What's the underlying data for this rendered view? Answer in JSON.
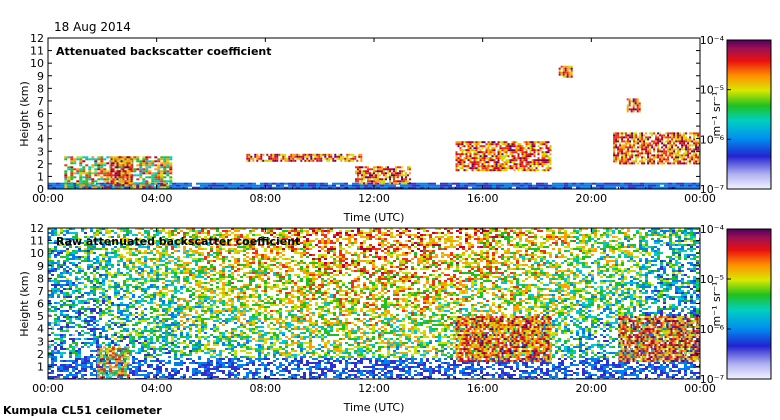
{
  "header": {
    "date": "18 Aug 2014"
  },
  "footer": {
    "site": "Kumpula CL51 ceilometer"
  },
  "chart_data": [
    {
      "type": "heatmap",
      "title": "Attenuated backscatter coefficient",
      "xlabel": "Time (UTC)",
      "ylabel": "Height (km)",
      "x_ticks": [
        "00:00",
        "04:00",
        "08:00",
        "12:00",
        "16:00",
        "20:00",
        "00:00"
      ],
      "x_range_hours": [
        0,
        24
      ],
      "y_ticks": [
        0,
        1,
        2,
        3,
        4,
        5,
        6,
        7,
        8,
        9,
        10,
        11,
        12
      ],
      "ylim": [
        0,
        12
      ],
      "colorbar": {
        "label": "m⁻¹ sr⁻¹",
        "ticks": [
          "10⁻⁴",
          "10⁻⁵",
          "10⁻⁶",
          "10⁻⁷"
        ],
        "range": [
          1e-07,
          0.0001
        ],
        "scale": "log"
      },
      "features": [
        {
          "kind": "surface-layer",
          "start_h": 0,
          "end_h": 24,
          "top_km": 0.5
        },
        {
          "kind": "boundary-layer",
          "start_h": 0.6,
          "end_h": 4.5,
          "top_km": 2.6
        },
        {
          "kind": "cloud",
          "start_h": 2.3,
          "end_h": 3.1,
          "base_km": 0.3,
          "top_km": 2.6
        },
        {
          "kind": "cloud",
          "start_h": 7.3,
          "end_h": 11.5,
          "base_km": 2.2,
          "top_km": 2.8
        },
        {
          "kind": "cloud",
          "start_h": 11.3,
          "end_h": 13.3,
          "base_km": 0.5,
          "top_km": 1.8
        },
        {
          "kind": "cloud",
          "start_h": 15.0,
          "end_h": 18.5,
          "base_km": 1.5,
          "top_km": 3.8
        },
        {
          "kind": "cloud",
          "start_h": 20.8,
          "end_h": 24,
          "base_km": 2.0,
          "top_km": 4.5
        },
        {
          "kind": "cloud",
          "start_h": 21.3,
          "end_h": 21.8,
          "base_km": 6.2,
          "top_km": 7.2
        },
        {
          "kind": "cloud",
          "start_h": 18.8,
          "end_h": 19.3,
          "base_km": 9.0,
          "top_km": 9.8
        }
      ]
    },
    {
      "type": "heatmap",
      "title": "Raw attenuated backscatter coefficient",
      "xlabel": "Time (UTC)",
      "ylabel": "Height (km)",
      "x_ticks": [
        "00:00",
        "04:00",
        "08:00",
        "12:00",
        "16:00",
        "20:00",
        "00:00"
      ],
      "x_range_hours": [
        0,
        24
      ],
      "y_ticks": [
        1,
        2,
        3,
        4,
        5,
        6,
        7,
        8,
        9,
        10,
        11,
        12
      ],
      "ylim": [
        0,
        12
      ],
      "colorbar": {
        "label": "m⁻¹ sr⁻¹",
        "ticks": [
          "10⁻⁴",
          "10⁻⁵",
          "10⁻⁶",
          "10⁻⁷"
        ],
        "range": [
          1e-07,
          0.0001
        ],
        "scale": "log"
      },
      "features": [
        {
          "kind": "noise-background",
          "start_h": 0,
          "end_h": 24,
          "base_km": 0,
          "top_km": 12
        },
        {
          "kind": "boundary-layer",
          "start_h": 1.8,
          "end_h": 3.0,
          "top_km": 2.6
        },
        {
          "kind": "cloud",
          "start_h": 15.0,
          "end_h": 18.5,
          "base_km": 1.5,
          "top_km": 5.0
        },
        {
          "kind": "cloud",
          "start_h": 21.0,
          "end_h": 24,
          "base_km": 1.5,
          "top_km": 5.0
        }
      ]
    }
  ]
}
